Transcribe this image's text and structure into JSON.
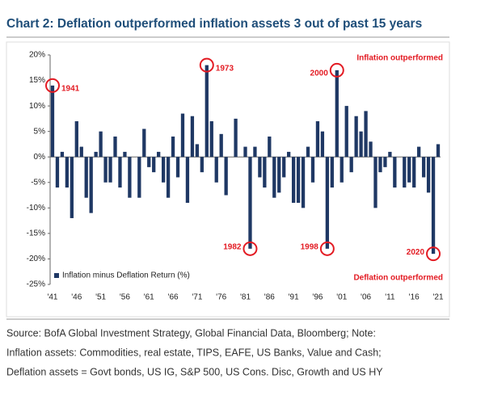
{
  "chart_data": {
    "type": "bar",
    "title": "Chart 2: Deflation outperformed inflation assets 3 out of past 15 years",
    "categories": [
      "'41",
      null,
      null,
      null,
      null,
      "'46",
      null,
      null,
      null,
      null,
      "'51",
      null,
      null,
      null,
      null,
      "'56",
      null,
      null,
      null,
      null,
      "'61",
      null,
      null,
      null,
      null,
      "'66",
      null,
      null,
      null,
      null,
      "'71",
      null,
      null,
      null,
      null,
      "'76",
      null,
      null,
      null,
      null,
      "'81",
      null,
      null,
      null,
      null,
      "'86",
      null,
      null,
      null,
      null,
      "'91",
      null,
      null,
      null,
      null,
      "'96",
      null,
      null,
      null,
      null,
      "'01",
      null,
      null,
      null,
      null,
      "'06",
      null,
      null,
      null,
      null,
      "'11",
      null,
      null,
      null,
      null,
      "'16",
      null,
      null,
      null,
      null,
      "'21"
    ],
    "series": [
      {
        "name": "Inflation minus Deflation Return (%)",
        "color": "#1f3864",
        "values": [
          14,
          -6,
          1,
          -6,
          -12,
          7,
          2,
          -8,
          -11,
          1,
          5,
          -5,
          -5,
          4,
          -6,
          1,
          -8,
          0,
          -8,
          5.5,
          -2,
          -3,
          1,
          -5,
          -8,
          4,
          -4,
          8.5,
          -9,
          8,
          2.5,
          -3,
          18,
          7,
          -5,
          4.5,
          -7.5,
          0,
          7.5,
          0,
          2,
          -18,
          2,
          -4,
          -6,
          4,
          -8,
          -7,
          -4,
          1,
          -9,
          -9,
          -10,
          2,
          -5,
          7,
          5,
          -18,
          -6,
          17,
          -5,
          10,
          -3,
          8,
          5,
          9,
          3,
          -10,
          -3,
          -2,
          1,
          -6,
          0,
          -6,
          -5,
          -6,
          2,
          -4,
          -7,
          -19,
          2.5
        ]
      }
    ],
    "ylim": [
      -25,
      20
    ],
    "yticks": [
      {
        "value": -25,
        "label": "-25%"
      },
      {
        "value": -20,
        "label": "-20%"
      },
      {
        "value": -15,
        "label": "-15%"
      },
      {
        "value": -10,
        "label": "-10%"
      },
      {
        "value": -5,
        "label": "-5%"
      },
      {
        "value": 0,
        "label": "0%"
      },
      {
        "value": 5,
        "label": "5%"
      },
      {
        "value": 10,
        "label": "10%"
      },
      {
        "value": 15,
        "label": "15%"
      },
      {
        "value": 20,
        "label": "20%"
      }
    ],
    "annotations": [
      "1941",
      "1973",
      "1982",
      "1998",
      "2000",
      "2020",
      "Inflation outperformed",
      "Deflation outperformed"
    ],
    "note": [
      "Source: BofA Global Investment Strategy, Global Financial Data, Bloomberg; Note:",
      "Inflation assets: Commodities, real estate, TIPS, EAFE, US Banks, Value and Cash;",
      "Deflation assets = Govt bonds, US IG, S&P 500, US Cons. Disc, Growth and US HY"
    ]
  }
}
